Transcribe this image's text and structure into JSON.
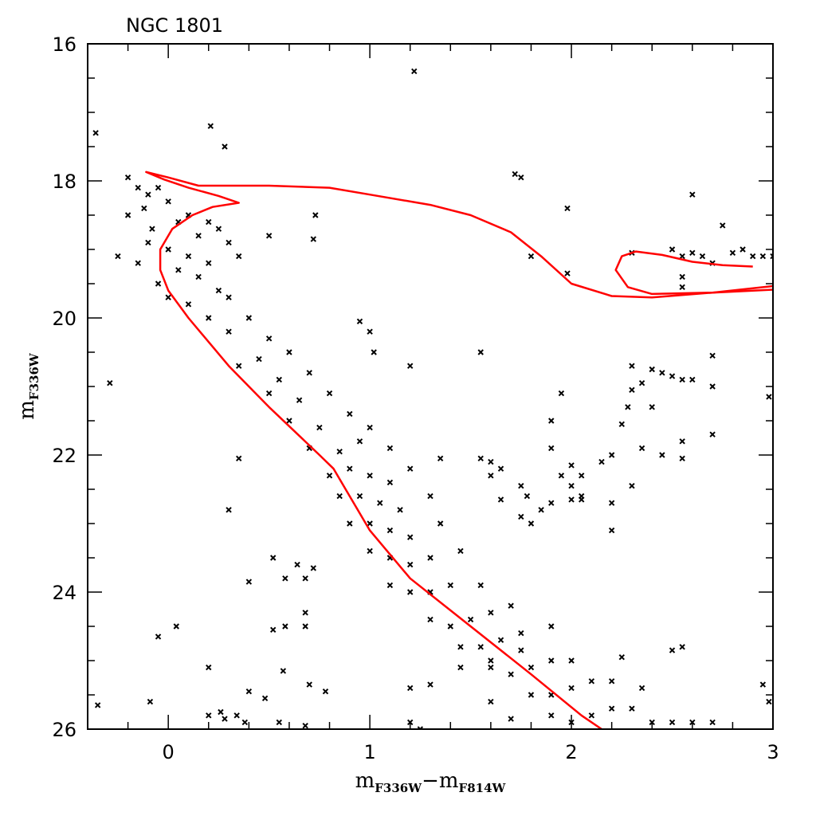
{
  "chart_data": {
    "type": "scatter",
    "title": "NGC 1801",
    "xlabel": {
      "main1": "m",
      "sub1": "F336W",
      "dash": "−",
      "main2": "m",
      "sub2": "F814W"
    },
    "ylabel": {
      "main": "m",
      "sub": "F336W"
    },
    "xlim": [
      -0.4,
      3
    ],
    "ylim": [
      26,
      16
    ],
    "y_inverted": true,
    "x_ticks": [
      "0",
      "1",
      "2",
      "3"
    ],
    "x_tick_values": [
      0,
      1,
      2,
      3
    ],
    "y_ticks": [
      "16",
      "18",
      "20",
      "22",
      "24",
      "26"
    ],
    "y_tick_values": [
      16,
      18,
      20,
      22,
      24,
      26
    ],
    "x_minor_step": 0.2,
    "y_minor_step": 0.5,
    "grid": false,
    "marker": "x",
    "marker_color": "#000000",
    "isochrone_color": "#ff0000",
    "isochrone": [
      [
        [
          2.15,
          26.0
        ],
        [
          2.05,
          25.8
        ],
        [
          1.8,
          25.2
        ],
        [
          1.5,
          24.5
        ],
        [
          1.2,
          23.8
        ],
        [
          1.0,
          23.1
        ],
        [
          0.9,
          22.6
        ],
        [
          0.82,
          22.2
        ],
        [
          0.75,
          22.0
        ],
        [
          0.5,
          21.3
        ],
        [
          0.3,
          20.7
        ],
        [
          0.1,
          20.0
        ],
        [
          0.0,
          19.6
        ],
        [
          -0.04,
          19.3
        ],
        [
          -0.04,
          19.0
        ],
        [
          0.02,
          18.7
        ],
        [
          0.12,
          18.5
        ],
        [
          0.22,
          18.38
        ],
        [
          0.35,
          18.32
        ],
        [
          0.25,
          18.22
        ],
        [
          0.1,
          18.1
        ],
        [
          -0.02,
          17.98
        ],
        [
          -0.11,
          17.87
        ],
        [
          0.0,
          17.95
        ],
        [
          0.15,
          18.07
        ],
        [
          0.5,
          18.07
        ],
        [
          0.8,
          18.1
        ],
        [
          1.0,
          18.2
        ],
        [
          1.3,
          18.35
        ],
        [
          1.5,
          18.5
        ],
        [
          1.7,
          18.75
        ],
        [
          1.85,
          19.1
        ],
        [
          2.0,
          19.5
        ],
        [
          2.2,
          19.68
        ],
        [
          2.4,
          19.7
        ],
        [
          2.7,
          19.63
        ],
        [
          3.05,
          19.52
        ]
      ],
      [
        [
          3.05,
          19.58
        ],
        [
          2.7,
          19.63
        ],
        [
          2.4,
          19.65
        ],
        [
          2.28,
          19.55
        ],
        [
          2.22,
          19.3
        ],
        [
          2.25,
          19.1
        ],
        [
          2.32,
          19.03
        ],
        [
          2.45,
          19.08
        ],
        [
          2.6,
          19.18
        ],
        [
          2.75,
          19.23
        ],
        [
          2.9,
          19.25
        ]
      ]
    ],
    "points": [
      [
        1.22,
        16.4
      ],
      [
        -0.36,
        17.3
      ],
      [
        0.21,
        17.2
      ],
      [
        0.28,
        17.5
      ],
      [
        1.72,
        17.9
      ],
      [
        1.75,
        17.95
      ],
      [
        1.98,
        18.4
      ],
      [
        2.6,
        18.2
      ],
      [
        0.73,
        18.5
      ],
      [
        0.5,
        18.8
      ],
      [
        0.72,
        18.85
      ],
      [
        1.8,
        19.1
      ],
      [
        1.98,
        19.35
      ],
      [
        2.3,
        19.05
      ],
      [
        2.5,
        19.0
      ],
      [
        2.55,
        19.1
      ],
      [
        2.6,
        19.05
      ],
      [
        2.65,
        19.1
      ],
      [
        2.7,
        19.2
      ],
      [
        2.75,
        18.65
      ],
      [
        2.8,
        19.05
      ],
      [
        2.85,
        19.0
      ],
      [
        2.55,
        19.4
      ],
      [
        2.55,
        19.55
      ],
      [
        2.9,
        19.1
      ],
      [
        2.95,
        19.1
      ],
      [
        3.0,
        19.1
      ],
      [
        -0.29,
        20.95
      ],
      [
        0.95,
        20.05
      ],
      [
        1.0,
        20.2
      ],
      [
        1.02,
        20.5
      ],
      [
        1.2,
        20.7
      ],
      [
        1.55,
        20.5
      ],
      [
        2.3,
        20.7
      ],
      [
        2.4,
        20.75
      ],
      [
        2.45,
        20.8
      ],
      [
        2.5,
        20.85
      ],
      [
        2.55,
        20.9
      ],
      [
        2.6,
        20.9
      ],
      [
        2.7,
        21.0
      ],
      [
        2.35,
        20.95
      ],
      [
        2.3,
        21.05
      ],
      [
        2.28,
        21.3
      ],
      [
        2.4,
        21.3
      ],
      [
        2.7,
        20.55
      ],
      [
        1.95,
        21.1
      ],
      [
        2.98,
        21.15
      ],
      [
        2.25,
        21.55
      ],
      [
        1.9,
        21.5
      ],
      [
        1.9,
        21.9
      ],
      [
        2.7,
        21.7
      ],
      [
        2.55,
        21.8
      ],
      [
        2.35,
        21.9
      ],
      [
        2.45,
        22.0
      ],
      [
        2.2,
        22.0
      ],
      [
        2.15,
        22.1
      ],
      [
        2.0,
        22.15
      ],
      [
        2.05,
        22.3
      ],
      [
        1.95,
        22.3
      ],
      [
        2.0,
        22.45
      ],
      [
        2.05,
        22.6
      ],
      [
        2.0,
        22.65
      ],
      [
        2.05,
        22.65
      ],
      [
        1.9,
        22.7
      ],
      [
        1.85,
        22.8
      ],
      [
        2.2,
        22.7
      ],
      [
        2.3,
        22.45
      ],
      [
        2.2,
        23.1
      ],
      [
        2.55,
        22.05
      ],
      [
        0.35,
        22.05
      ],
      [
        0.3,
        22.8
      ],
      [
        1.35,
        22.05
      ],
      [
        1.55,
        22.05
      ],
      [
        1.6,
        22.1
      ],
      [
        1.65,
        22.2
      ],
      [
        1.6,
        22.3
      ],
      [
        1.75,
        22.45
      ],
      [
        1.78,
        22.6
      ],
      [
        1.65,
        22.65
      ],
      [
        1.75,
        22.9
      ],
      [
        1.8,
        23.0
      ],
      [
        0.4,
        23.85
      ],
      [
        0.52,
        23.5
      ],
      [
        0.58,
        23.8
      ],
      [
        0.64,
        23.6
      ],
      [
        0.68,
        23.8
      ],
      [
        0.72,
        23.65
      ],
      [
        0.68,
        24.3
      ],
      [
        0.68,
        24.5
      ],
      [
        0.58,
        24.5
      ],
      [
        0.52,
        24.55
      ],
      [
        -0.05,
        24.65
      ],
      [
        0.04,
        24.5
      ],
      [
        0.2,
        25.1
      ],
      [
        0.57,
        25.15
      ],
      [
        0.55,
        25.9
      ],
      [
        0.48,
        25.55
      ],
      [
        0.7,
        25.35
      ],
      [
        0.78,
        25.45
      ],
      [
        0.4,
        25.45
      ],
      [
        0.2,
        25.8
      ],
      [
        0.26,
        25.75
      ],
      [
        0.34,
        25.8
      ],
      [
        0.38,
        25.9
      ],
      [
        -0.09,
        25.6
      ],
      [
        -0.35,
        25.65
      ],
      [
        0.68,
        25.95
      ],
      [
        0.28,
        25.85
      ],
      [
        2.5,
        24.85
      ],
      [
        2.55,
        24.8
      ],
      [
        2.25,
        24.95
      ],
      [
        2.95,
        25.35
      ],
      [
        2.98,
        25.6
      ],
      [
        2.5,
        25.9
      ],
      [
        2.6,
        25.9
      ],
      [
        2.7,
        25.9
      ],
      [
        1.75,
        24.85
      ],
      [
        1.6,
        25.0
      ],
      [
        1.45,
        25.1
      ],
      [
        1.3,
        25.35
      ],
      [
        1.2,
        25.4
      ],
      [
        1.2,
        25.9
      ],
      [
        1.25,
        26.0
      ],
      [
        -0.2,
        17.95
      ],
      [
        -0.15,
        18.1
      ],
      [
        -0.1,
        18.2
      ],
      [
        -0.05,
        18.1
      ],
      [
        0.0,
        18.3
      ],
      [
        -0.12,
        18.4
      ],
      [
        -0.2,
        18.5
      ],
      [
        0.05,
        18.6
      ],
      [
        -0.08,
        18.7
      ],
      [
        0.1,
        18.5
      ],
      [
        0.15,
        18.8
      ],
      [
        0.2,
        18.6
      ],
      [
        0.25,
        18.7
      ],
      [
        0.3,
        18.9
      ],
      [
        0.35,
        19.1
      ],
      [
        -0.1,
        18.9
      ],
      [
        -0.25,
        19.1
      ],
      [
        -0.15,
        19.2
      ],
      [
        0.0,
        19.0
      ],
      [
        0.05,
        19.3
      ],
      [
        0.1,
        19.1
      ],
      [
        0.15,
        19.4
      ],
      [
        0.2,
        19.2
      ],
      [
        0.25,
        19.6
      ],
      [
        -0.05,
        19.5
      ],
      [
        0.0,
        19.7
      ],
      [
        0.1,
        19.8
      ],
      [
        0.3,
        19.7
      ],
      [
        0.4,
        20.0
      ],
      [
        0.2,
        20.0
      ],
      [
        0.5,
        20.3
      ],
      [
        0.3,
        20.2
      ],
      [
        0.45,
        20.6
      ],
      [
        0.6,
        20.5
      ],
      [
        0.35,
        20.7
      ],
      [
        0.55,
        20.9
      ],
      [
        0.7,
        20.8
      ],
      [
        0.5,
        21.1
      ],
      [
        0.65,
        21.2
      ],
      [
        0.8,
        21.1
      ],
      [
        0.6,
        21.5
      ],
      [
        0.75,
        21.6
      ],
      [
        0.9,
        21.4
      ],
      [
        1.0,
        21.6
      ],
      [
        0.7,
        21.9
      ],
      [
        0.85,
        21.95
      ],
      [
        0.95,
        21.8
      ],
      [
        1.1,
        21.9
      ],
      [
        0.8,
        22.3
      ],
      [
        0.9,
        22.2
      ],
      [
        1.0,
        22.3
      ],
      [
        1.1,
        22.4
      ],
      [
        1.2,
        22.2
      ],
      [
        0.85,
        22.6
      ],
      [
        0.95,
        22.6
      ],
      [
        1.05,
        22.7
      ],
      [
        1.15,
        22.8
      ],
      [
        1.3,
        22.6
      ],
      [
        0.9,
        23.0
      ],
      [
        1.0,
        23.0
      ],
      [
        1.1,
        23.1
      ],
      [
        1.2,
        23.2
      ],
      [
        1.35,
        23.0
      ],
      [
        1.0,
        23.4
      ],
      [
        1.1,
        23.5
      ],
      [
        1.2,
        23.6
      ],
      [
        1.3,
        23.5
      ],
      [
        1.45,
        23.4
      ],
      [
        1.1,
        23.9
      ],
      [
        1.2,
        24.0
      ],
      [
        1.3,
        24.0
      ],
      [
        1.4,
        23.9
      ],
      [
        1.55,
        23.9
      ],
      [
        1.3,
        24.4
      ],
      [
        1.4,
        24.5
      ],
      [
        1.5,
        24.4
      ],
      [
        1.6,
        24.3
      ],
      [
        1.7,
        24.2
      ],
      [
        1.45,
        24.8
      ],
      [
        1.55,
        24.8
      ],
      [
        1.65,
        24.7
      ],
      [
        1.75,
        24.6
      ],
      [
        1.9,
        24.5
      ],
      [
        1.6,
        25.1
      ],
      [
        1.7,
        25.2
      ],
      [
        1.8,
        25.1
      ],
      [
        1.9,
        25.0
      ],
      [
        2.0,
        25.0
      ],
      [
        1.8,
        25.5
      ],
      [
        1.9,
        25.5
      ],
      [
        2.0,
        25.4
      ],
      [
        2.1,
        25.3
      ],
      [
        2.2,
        25.3
      ],
      [
        1.9,
        25.8
      ],
      [
        2.0,
        25.9
      ],
      [
        2.1,
        25.8
      ],
      [
        2.2,
        25.7
      ],
      [
        2.3,
        25.7
      ],
      [
        2.4,
        25.9
      ],
      [
        1.7,
        25.85
      ],
      [
        1.6,
        25.6
      ],
      [
        2.35,
        25.4
      ]
    ]
  }
}
